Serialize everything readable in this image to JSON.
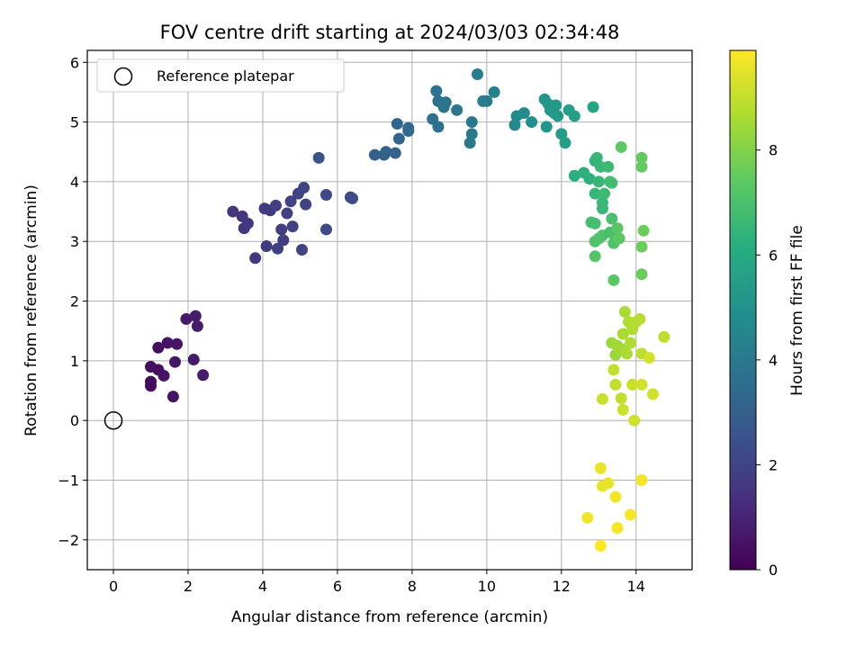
{
  "chart_data": {
    "type": "scatter",
    "title": "FOV centre drift starting at 2024/03/03 02:34:48",
    "xlabel": "Angular distance from reference (arcmin)",
    "ylabel": "Rotation from reference (arcmin)",
    "xlim": [
      -0.7,
      15.5
    ],
    "ylim": [
      -2.5,
      6.2
    ],
    "xticks": [
      0,
      2,
      4,
      6,
      8,
      10,
      12,
      14
    ],
    "yticks": [
      -2,
      -1,
      0,
      1,
      2,
      3,
      4,
      5,
      6
    ],
    "xtick_labels": [
      "0",
      "2",
      "4",
      "6",
      "8",
      "10",
      "12",
      "14"
    ],
    "ytick_labels": [
      "−2",
      "−1",
      "0",
      "1",
      "2",
      "3",
      "4",
      "5",
      "6"
    ],
    "grid": true,
    "colormap": "viridis",
    "colorbar": {
      "label": "Hours from first FF file",
      "range": [
        0,
        9.9
      ],
      "ticks": [
        0,
        2,
        4,
        6,
        8
      ],
      "tick_labels": [
        "0",
        "2",
        "4",
        "6",
        "8"
      ]
    },
    "reference": {
      "name": "Reference platepar",
      "x": 0,
      "y": 0
    },
    "legend": {
      "position": "top-left",
      "label": "Reference platepar"
    },
    "points": [
      {
        "x": 1.0,
        "y": 0.58,
        "c": 0.3
      },
      {
        "x": 1.0,
        "y": 0.65,
        "c": 0.3
      },
      {
        "x": 1.0,
        "y": 0.9,
        "c": 0.4
      },
      {
        "x": 1.2,
        "y": 0.85,
        "c": 0.4
      },
      {
        "x": 1.2,
        "y": 1.22,
        "c": 0.4
      },
      {
        "x": 1.35,
        "y": 0.75,
        "c": 0.5
      },
      {
        "x": 1.45,
        "y": 1.3,
        "c": 0.5
      },
      {
        "x": 1.6,
        "y": 0.4,
        "c": 0.5
      },
      {
        "x": 1.65,
        "y": 0.98,
        "c": 0.6
      },
      {
        "x": 1.7,
        "y": 1.28,
        "c": 0.6
      },
      {
        "x": 1.95,
        "y": 1.7,
        "c": 0.7
      },
      {
        "x": 2.15,
        "y": 1.02,
        "c": 0.7
      },
      {
        "x": 2.2,
        "y": 1.75,
        "c": 0.8
      },
      {
        "x": 2.25,
        "y": 1.58,
        "c": 0.8
      },
      {
        "x": 2.4,
        "y": 0.76,
        "c": 0.8
      },
      {
        "x": 3.2,
        "y": 3.5,
        "c": 1.5
      },
      {
        "x": 3.45,
        "y": 3.42,
        "c": 1.5
      },
      {
        "x": 3.5,
        "y": 3.22,
        "c": 1.5
      },
      {
        "x": 3.6,
        "y": 3.3,
        "c": 1.6
      },
      {
        "x": 3.8,
        "y": 2.72,
        "c": 1.6
      },
      {
        "x": 4.05,
        "y": 3.55,
        "c": 1.7
      },
      {
        "x": 4.1,
        "y": 2.92,
        "c": 1.7
      },
      {
        "x": 4.2,
        "y": 3.52,
        "c": 1.7
      },
      {
        "x": 4.35,
        "y": 3.6,
        "c": 1.8
      },
      {
        "x": 4.4,
        "y": 2.88,
        "c": 1.8
      },
      {
        "x": 4.5,
        "y": 3.2,
        "c": 1.8
      },
      {
        "x": 4.55,
        "y": 3.02,
        "c": 1.8
      },
      {
        "x": 4.65,
        "y": 3.47,
        "c": 1.9
      },
      {
        "x": 4.75,
        "y": 3.67,
        "c": 1.9
      },
      {
        "x": 4.8,
        "y": 3.25,
        "c": 1.9
      },
      {
        "x": 4.95,
        "y": 3.8,
        "c": 2.0
      },
      {
        "x": 5.05,
        "y": 2.86,
        "c": 2.0
      },
      {
        "x": 5.1,
        "y": 3.9,
        "c": 2.0
      },
      {
        "x": 5.15,
        "y": 3.62,
        "c": 2.0
      },
      {
        "x": 5.5,
        "y": 4.4,
        "c": 2.5
      },
      {
        "x": 5.7,
        "y": 3.78,
        "c": 2.2
      },
      {
        "x": 5.7,
        "y": 3.2,
        "c": 2.2
      },
      {
        "x": 6.35,
        "y": 3.74,
        "c": 2.3
      },
      {
        "x": 6.4,
        "y": 3.72,
        "c": 2.3
      },
      {
        "x": 7.0,
        "y": 4.45,
        "c": 3.0
      },
      {
        "x": 7.25,
        "y": 4.45,
        "c": 3.0
      },
      {
        "x": 7.3,
        "y": 4.5,
        "c": 3.1
      },
      {
        "x": 7.55,
        "y": 4.48,
        "c": 3.1
      },
      {
        "x": 7.6,
        "y": 4.97,
        "c": 3.3
      },
      {
        "x": 7.65,
        "y": 4.72,
        "c": 3.2
      },
      {
        "x": 7.9,
        "y": 4.85,
        "c": 3.3
      },
      {
        "x": 7.9,
        "y": 4.9,
        "c": 3.4
      },
      {
        "x": 8.55,
        "y": 5.05,
        "c": 3.6
      },
      {
        "x": 8.65,
        "y": 5.52,
        "c": 3.7
      },
      {
        "x": 8.7,
        "y": 4.92,
        "c": 3.7
      },
      {
        "x": 8.7,
        "y": 5.35,
        "c": 3.7
      },
      {
        "x": 8.85,
        "y": 5.25,
        "c": 3.8
      },
      {
        "x": 8.9,
        "y": 5.33,
        "c": 3.8
      },
      {
        "x": 9.2,
        "y": 5.2,
        "c": 3.9
      },
      {
        "x": 9.55,
        "y": 4.65,
        "c": 4.0
      },
      {
        "x": 9.6,
        "y": 4.8,
        "c": 4.0
      },
      {
        "x": 9.6,
        "y": 5.0,
        "c": 4.0
      },
      {
        "x": 9.75,
        "y": 5.8,
        "c": 4.1
      },
      {
        "x": 9.9,
        "y": 5.35,
        "c": 4.2
      },
      {
        "x": 10.0,
        "y": 5.35,
        "c": 4.2
      },
      {
        "x": 10.2,
        "y": 5.5,
        "c": 4.3
      },
      {
        "x": 10.75,
        "y": 4.95,
        "c": 4.6
      },
      {
        "x": 10.8,
        "y": 5.1,
        "c": 4.7
      },
      {
        "x": 11.0,
        "y": 5.15,
        "c": 4.8
      },
      {
        "x": 11.2,
        "y": 5.0,
        "c": 4.9
      },
      {
        "x": 11.55,
        "y": 5.38,
        "c": 5.1
      },
      {
        "x": 11.6,
        "y": 4.92,
        "c": 5.1
      },
      {
        "x": 11.65,
        "y": 5.3,
        "c": 5.2
      },
      {
        "x": 11.7,
        "y": 5.2,
        "c": 5.2
      },
      {
        "x": 11.8,
        "y": 5.15,
        "c": 5.3
      },
      {
        "x": 11.85,
        "y": 5.28,
        "c": 5.3
      },
      {
        "x": 11.9,
        "y": 5.1,
        "c": 5.3
      },
      {
        "x": 12.0,
        "y": 4.8,
        "c": 5.4
      },
      {
        "x": 12.1,
        "y": 4.65,
        "c": 5.5
      },
      {
        "x": 12.2,
        "y": 5.2,
        "c": 5.5
      },
      {
        "x": 12.35,
        "y": 5.1,
        "c": 5.6
      },
      {
        "x": 12.85,
        "y": 5.25,
        "c": 5.8
      },
      {
        "x": 12.35,
        "y": 4.1,
        "c": 6.2
      },
      {
        "x": 12.6,
        "y": 4.15,
        "c": 6.3
      },
      {
        "x": 12.75,
        "y": 4.05,
        "c": 6.3
      },
      {
        "x": 12.9,
        "y": 4.35,
        "c": 6.4
      },
      {
        "x": 12.9,
        "y": 3.8,
        "c": 6.5
      },
      {
        "x": 12.95,
        "y": 4.4,
        "c": 6.5
      },
      {
        "x": 13.0,
        "y": 4.0,
        "c": 6.5
      },
      {
        "x": 13.05,
        "y": 4.25,
        "c": 6.6
      },
      {
        "x": 13.1,
        "y": 3.65,
        "c": 6.6
      },
      {
        "x": 13.1,
        "y": 3.55,
        "c": 6.6
      },
      {
        "x": 13.15,
        "y": 3.8,
        "c": 6.7
      },
      {
        "x": 13.25,
        "y": 4.25,
        "c": 6.7
      },
      {
        "x": 13.3,
        "y": 4.0,
        "c": 6.8
      },
      {
        "x": 13.35,
        "y": 3.98,
        "c": 6.8
      },
      {
        "x": 12.8,
        "y": 3.32,
        "c": 6.9
      },
      {
        "x": 12.9,
        "y": 3.3,
        "c": 6.9
      },
      {
        "x": 13.1,
        "y": 3.1,
        "c": 7.0
      },
      {
        "x": 13.3,
        "y": 3.15,
        "c": 7.0
      },
      {
        "x": 13.35,
        "y": 3.38,
        "c": 7.0
      },
      {
        "x": 13.4,
        "y": 2.97,
        "c": 7.1
      },
      {
        "x": 12.9,
        "y": 3.0,
        "c": 7.1
      },
      {
        "x": 13.0,
        "y": 3.05,
        "c": 7.1
      },
      {
        "x": 12.9,
        "y": 2.75,
        "c": 7.2
      },
      {
        "x": 13.4,
        "y": 2.35,
        "c": 7.3
      },
      {
        "x": 13.5,
        "y": 3.22,
        "c": 7.3
      },
      {
        "x": 13.55,
        "y": 3.05,
        "c": 7.4
      },
      {
        "x": 13.6,
        "y": 4.58,
        "c": 7.4
      },
      {
        "x": 14.15,
        "y": 4.4,
        "c": 7.5
      },
      {
        "x": 14.15,
        "y": 4.25,
        "c": 7.5
      },
      {
        "x": 14.2,
        "y": 3.18,
        "c": 7.6
      },
      {
        "x": 14.15,
        "y": 2.91,
        "c": 7.6
      },
      {
        "x": 14.15,
        "y": 2.45,
        "c": 7.6
      },
      {
        "x": 13.35,
        "y": 1.3,
        "c": 8.4
      },
      {
        "x": 13.45,
        "y": 1.1,
        "c": 8.4
      },
      {
        "x": 13.5,
        "y": 1.25,
        "c": 8.5
      },
      {
        "x": 13.6,
        "y": 1.2,
        "c": 8.5
      },
      {
        "x": 13.65,
        "y": 1.45,
        "c": 8.6
      },
      {
        "x": 13.7,
        "y": 1.82,
        "c": 8.6
      },
      {
        "x": 13.75,
        "y": 1.12,
        "c": 8.6
      },
      {
        "x": 13.8,
        "y": 1.65,
        "c": 8.7
      },
      {
        "x": 13.85,
        "y": 1.3,
        "c": 8.7
      },
      {
        "x": 13.9,
        "y": 1.53,
        "c": 8.7
      },
      {
        "x": 14.0,
        "y": 1.65,
        "c": 8.8
      },
      {
        "x": 14.1,
        "y": 1.7,
        "c": 8.8
      },
      {
        "x": 14.15,
        "y": 1.12,
        "c": 8.9
      },
      {
        "x": 14.75,
        "y": 1.4,
        "c": 8.9
      },
      {
        "x": 13.4,
        "y": 0.85,
        "c": 9.0
      },
      {
        "x": 13.45,
        "y": 0.6,
        "c": 9.0
      },
      {
        "x": 13.6,
        "y": 0.37,
        "c": 9.0
      },
      {
        "x": 13.65,
        "y": 0.18,
        "c": 9.1
      },
      {
        "x": 13.1,
        "y": 0.36,
        "c": 9.1
      },
      {
        "x": 13.9,
        "y": 0.6,
        "c": 9.1
      },
      {
        "x": 13.95,
        "y": 0.0,
        "c": 9.2
      },
      {
        "x": 14.15,
        "y": 0.6,
        "c": 9.2
      },
      {
        "x": 14.35,
        "y": 1.05,
        "c": 9.2
      },
      {
        "x": 14.45,
        "y": 0.44,
        "c": 9.2
      },
      {
        "x": 13.05,
        "y": -0.8,
        "c": 9.6
      },
      {
        "x": 13.1,
        "y": -1.1,
        "c": 9.6
      },
      {
        "x": 13.25,
        "y": -1.05,
        "c": 9.6
      },
      {
        "x": 13.45,
        "y": -1.28,
        "c": 9.7
      },
      {
        "x": 14.15,
        "y": -1.0,
        "c": 9.7
      },
      {
        "x": 12.7,
        "y": -1.63,
        "c": 9.7
      },
      {
        "x": 13.5,
        "y": -1.8,
        "c": 9.8
      },
      {
        "x": 13.85,
        "y": -1.58,
        "c": 9.8
      },
      {
        "x": 13.05,
        "y": -2.1,
        "c": 9.9
      }
    ]
  }
}
